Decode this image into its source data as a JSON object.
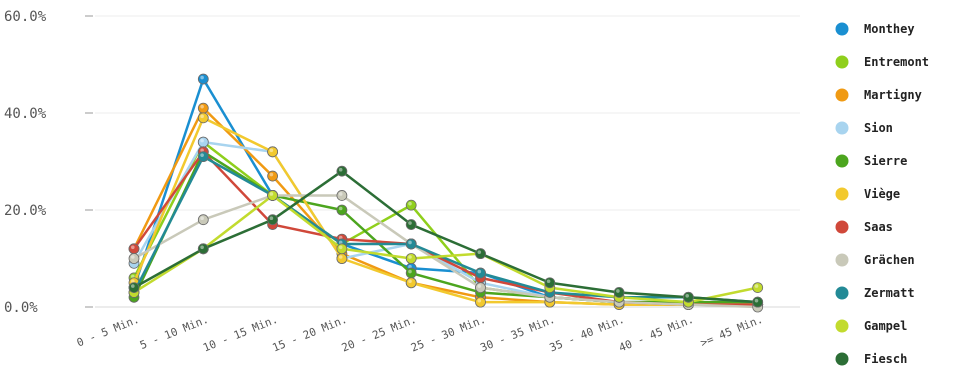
{
  "chart_data": {
    "type": "line",
    "title": "",
    "xlabel": "",
    "ylabel": "",
    "categories": [
      "0 - 5 Min.",
      "5 - 10 Min.",
      "10 - 15 Min.",
      "15 - 20 Min.",
      "20 - 25 Min.",
      "25 - 30 Min.",
      "30 - 35 Min.",
      "35 - 40 Min.",
      "40 - 45 Min.",
      ">= 45 Min."
    ],
    "ylim": [
      0,
      60
    ],
    "yticks": [
      0,
      20,
      40,
      60
    ],
    "ytick_labels": [
      "0.0%",
      "20.0%",
      "40.0%",
      "60.0%"
    ],
    "grid": true,
    "legend_position": "right",
    "series": [
      {
        "name": "Monthey",
        "color": "#1a8fd1",
        "values": [
          4,
          47,
          23,
          13,
          8,
          7,
          2,
          1,
          1,
          0.5
        ]
      },
      {
        "name": "Entremont",
        "color": "#8fcf1c",
        "values": [
          6,
          34,
          23,
          13,
          21,
          4,
          2,
          1,
          0.5,
          0.5
        ]
      },
      {
        "name": "Martigny",
        "color": "#f09a13",
        "values": [
          12,
          41,
          27,
          11,
          5,
          2,
          1,
          0.5,
          0.5,
          0.5
        ]
      },
      {
        "name": "Sion",
        "color": "#a8d4ef",
        "values": [
          9,
          34,
          32,
          10,
          13,
          5,
          2,
          1,
          0.5,
          0.5
        ]
      },
      {
        "name": "Sierre",
        "color": "#4ca51e",
        "values": [
          2,
          32,
          23,
          20,
          7,
          3,
          2,
          1,
          1,
          1
        ]
      },
      {
        "name": "Viège",
        "color": "#f2c92e",
        "values": [
          5,
          39,
          32,
          10,
          5,
          1,
          1,
          0.5,
          0.5,
          0.5
        ]
      },
      {
        "name": "Saas",
        "color": "#d0483a",
        "values": [
          12,
          32,
          17,
          14,
          13,
          6,
          3,
          1,
          0.5,
          0.5
        ]
      },
      {
        "name": "Grächen",
        "color": "#c9c9b9",
        "values": [
          10,
          18,
          23,
          23,
          13,
          4,
          2,
          1,
          0.5,
          0
        ]
      },
      {
        "name": "Zermatt",
        "color": "#238a96",
        "values": [
          3,
          31,
          23,
          13,
          13,
          7,
          3,
          2,
          2,
          1
        ]
      },
      {
        "name": "Gampel",
        "color": "#c2db2e",
        "values": [
          3,
          12,
          23,
          12,
          10,
          11,
          4,
          2,
          1,
          4
        ]
      },
      {
        "name": "Fiesch",
        "color": "#2c6e36",
        "values": [
          4,
          12,
          18,
          28,
          17,
          11,
          5,
          3,
          2,
          1
        ]
      }
    ]
  }
}
